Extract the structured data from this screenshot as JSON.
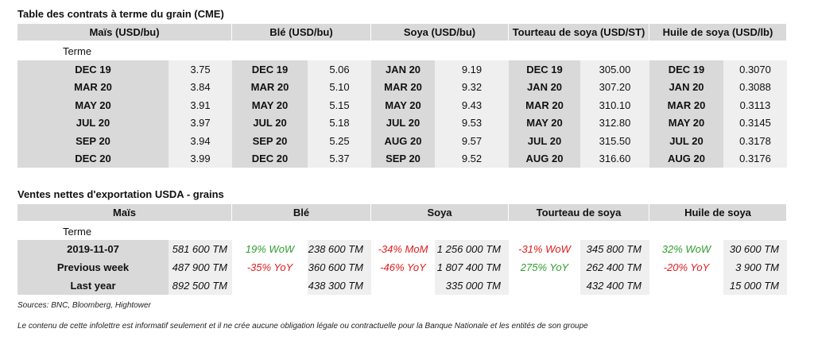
{
  "table1": {
    "title": "Table des contrats à terme du grain (CME)",
    "headers": [
      "Maïs (USD/bu)",
      "Blé (USD/bu)",
      "Soya (USD/bu)",
      "Tourteau de soya (USD/ST)",
      "Huile de soya (USD/lb)"
    ],
    "term_label": "Terme",
    "groups": [
      [
        [
          "DEC 19",
          "3.75"
        ],
        [
          "MAR 20",
          "3.84"
        ],
        [
          "MAY 20",
          "3.91"
        ],
        [
          "JUL 20",
          "3.97"
        ],
        [
          "SEP 20",
          "3.94"
        ],
        [
          "DEC 20",
          "3.99"
        ]
      ],
      [
        [
          "DEC 19",
          "5.06"
        ],
        [
          "MAR 20",
          "5.10"
        ],
        [
          "MAY 20",
          "5.15"
        ],
        [
          "JUL 20",
          "5.18"
        ],
        [
          "SEP 20",
          "5.25"
        ],
        [
          "DEC 20",
          "5.37"
        ]
      ],
      [
        [
          "JAN 20",
          "9.19"
        ],
        [
          "MAR 20",
          "9.32"
        ],
        [
          "MAY 20",
          "9.43"
        ],
        [
          "JUL 20",
          "9.53"
        ],
        [
          "AUG 20",
          "9.57"
        ],
        [
          "SEP 20",
          "9.52"
        ]
      ],
      [
        [
          "DEC 19",
          "305.00"
        ],
        [
          "JAN 20",
          "307.20"
        ],
        [
          "MAR 20",
          "310.10"
        ],
        [
          "MAY 20",
          "312.80"
        ],
        [
          "JUL 20",
          "315.50"
        ],
        [
          "AUG 20",
          "316.60"
        ]
      ],
      [
        [
          "DEC 19",
          "0.3070"
        ],
        [
          "JAN 20",
          "0.3088"
        ],
        [
          "MAR 20",
          "0.3113"
        ],
        [
          "MAY 20",
          "0.3145"
        ],
        [
          "JUL 20",
          "0.3178"
        ],
        [
          "AUG 20",
          "0.3176"
        ]
      ]
    ]
  },
  "table2": {
    "title": "Ventes nettes d'exportation USDA - grains",
    "headers": [
      "Maïs",
      "Blé",
      "Soya",
      "Tourteau de soya",
      "Huile de soya"
    ],
    "term_label": "Terme",
    "change_colors": {
      "up": "#2e9e2e",
      "down": "#e01b1b"
    },
    "rows": [
      {
        "label": "2019-11-07",
        "mais": "581 600 TM",
        "others": [
          [
            "19% WoW",
            "238 600 TM"
          ],
          [
            "-34% MoM",
            "1 256 000 TM"
          ],
          [
            "-31% WoW",
            "345 800 TM"
          ],
          [
            "32% WoW",
            "30 600 TM"
          ]
        ]
      },
      {
        "label": "Previous week",
        "mais": "487 900 TM",
        "others": [
          [
            "-35% YoY",
            "360 600 TM"
          ],
          [
            "-46% YoY",
            "1 807 400 TM"
          ],
          [
            "275% YoY",
            "262 400 TM"
          ],
          [
            "-20% YoY",
            "3 900 TM"
          ]
        ]
      },
      {
        "label": "Last year",
        "mais": "892 500 TM",
        "others": [
          [
            null,
            "438 300 TM"
          ],
          [
            null,
            "335 000 TM"
          ],
          [
            null,
            "432 400 TM"
          ],
          [
            null,
            "15 000 TM"
          ]
        ]
      }
    ]
  },
  "footer": {
    "sources": "Sources: BNC, Bloomberg, Hightower",
    "disclaimer": "Le contenu de cette infolettre est informatif seulement et il ne crée aucune obligation légale ou contractuelle pour la Banque Nationale et les entités de son groupe"
  }
}
